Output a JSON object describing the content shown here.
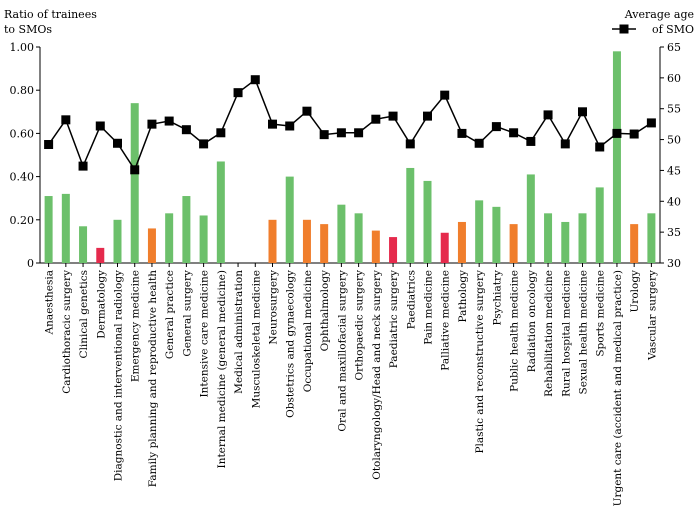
{
  "chart_data": {
    "type": "bar",
    "ylabel_left": [
      "Ratio of trainees",
      "to SMOs"
    ],
    "ylabel_right": [
      "Average age",
      "of SMO"
    ],
    "legend": {
      "label": "of SMO",
      "marker": "square",
      "color": "#000000",
      "placement": "top-right"
    },
    "ylim_left": [
      0,
      1.0
    ],
    "yticks_left": [
      "0",
      "0.20",
      "0.40",
      "0.60",
      "0.80",
      "1.00"
    ],
    "ylim_right": [
      30,
      65
    ],
    "yticks_right": [
      "30",
      "35",
      "40",
      "45",
      "50",
      "55",
      "60",
      "65"
    ],
    "colors": {
      "green": "#6cc06b",
      "orange": "#f07e2c",
      "red": "#e52a4c"
    },
    "categories": [
      "Anaesthesia",
      "Cardiothoracic surgery",
      "Clinical genetics",
      "Dermatology",
      "Diagnostic and interventional radiology",
      "Emergency medicine",
      "Family planning and reproductive health",
      "General practice",
      "General surgery",
      "Intensive care medicine",
      "Internal medicine (general medicine)",
      "Medical administration",
      "Musculoskeletal medicine",
      "Neurosurgery",
      "Obstetrics and gynaecology",
      "Occupational medicine",
      "Ophthalmology",
      "Oral and maxillofacial surgery",
      "Orthopaedic surgery",
      "Otolaryngology/Head and neck surgery",
      "Paediatric surgery",
      "Paediatrics",
      "Pain medicine",
      "Palliative medicine",
      "Pathology",
      "Plastic and reconstructive surgery",
      "Psychiatry",
      "Public health medicine",
      "Radiation oncology",
      "Rehabilitation medicine",
      "Rural hospital medicine",
      "Sexual health medicine",
      "Sports medicine",
      "Urgent care (accident and medical practice)",
      "Urology",
      "Vascular surgery"
    ],
    "series": [
      {
        "type": "bar",
        "axis": "left",
        "values": [
          0.31,
          0.32,
          0.17,
          0.07,
          0.2,
          0.74,
          0.16,
          0.23,
          0.31,
          0.22,
          0.47,
          0.0,
          0.0,
          0.2,
          0.4,
          0.2,
          0.18,
          0.27,
          0.23,
          0.15,
          0.12,
          0.44,
          0.38,
          0.14,
          0.19,
          0.29,
          0.26,
          0.18,
          0.41,
          0.23,
          0.19,
          0.23,
          0.35,
          0.98,
          0.18,
          0.23
        ],
        "bar_colors": [
          "green",
          "green",
          "green",
          "red",
          "green",
          "green",
          "orange",
          "green",
          "green",
          "green",
          "green",
          "green",
          "green",
          "orange",
          "green",
          "orange",
          "orange",
          "green",
          "green",
          "orange",
          "red",
          "green",
          "green",
          "red",
          "orange",
          "green",
          "green",
          "orange",
          "green",
          "green",
          "green",
          "green",
          "green",
          "green",
          "orange",
          "green"
        ]
      },
      {
        "type": "line",
        "axis": "right",
        "name": "Average age of SMO",
        "values": [
          49.2,
          53.2,
          45.7,
          52.2,
          49.4,
          45.1,
          52.5,
          53.0,
          51.6,
          49.3,
          51.1,
          57.6,
          59.7,
          52.5,
          52.2,
          54.6,
          50.8,
          51.1,
          51.1,
          53.3,
          53.8,
          49.3,
          53.8,
          57.2,
          51.0,
          49.4,
          52.1,
          51.1,
          49.7,
          54.0,
          49.3,
          54.5,
          48.8,
          51.0,
          50.9,
          52.7
        ]
      }
    ]
  }
}
